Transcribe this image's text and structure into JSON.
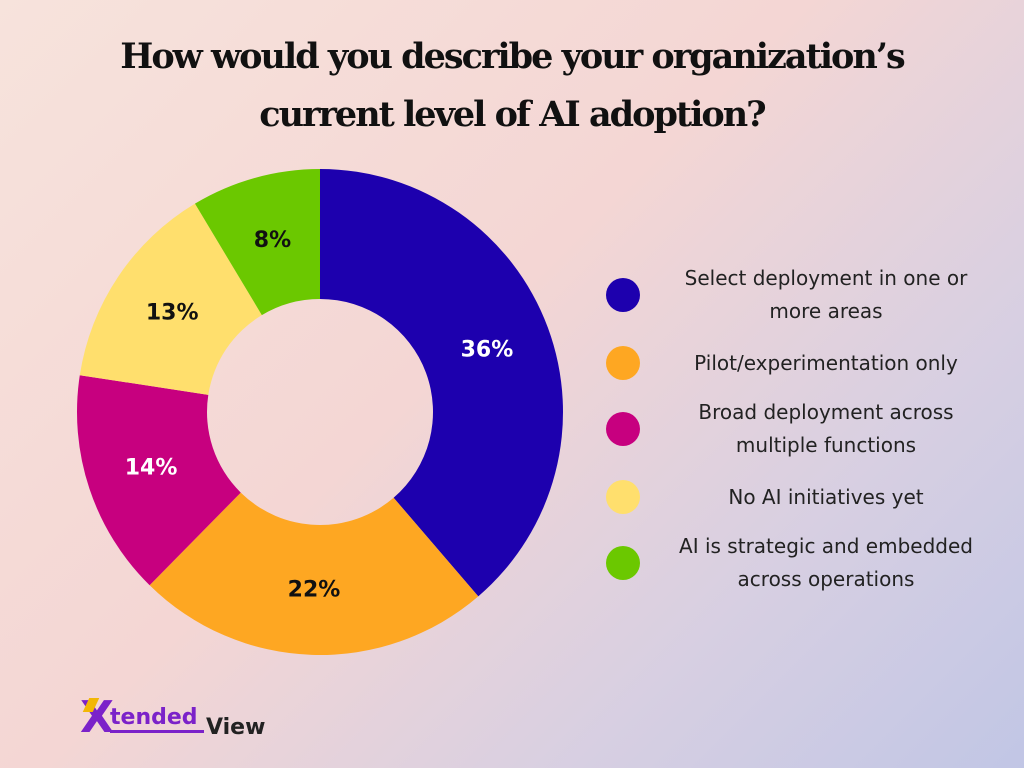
{
  "chart_data": {
    "type": "pie",
    "title_lines": [
      "How would you describe your organization’s",
      "current level of AI adoption?"
    ],
    "donut": true,
    "slices": [
      {
        "label": "Select deployment in one or more areas",
        "value": 36,
        "display": "36%",
        "color": "#1d00ae",
        "label_color": "#ffffff"
      },
      {
        "label": "Pilot/experimentation only",
        "value": 22,
        "display": "22%",
        "color": "#fea722",
        "label_color": "#111111"
      },
      {
        "label": "Broad deployment across multiple functions",
        "value": 14,
        "display": "14%",
        "color": "#c7007f",
        "label_color": "#ffffff"
      },
      {
        "label": "No AI initiatives yet",
        "value": 13,
        "display": "13%",
        "color": "#ffdf6d",
        "label_color": "#111111"
      },
      {
        "label": "AI is strategic and embedded across operations",
        "value": 8,
        "display": "8%",
        "color": "#6bc800",
        "label_color": "#111111"
      }
    ],
    "legend": {
      "placement": "right",
      "items": [
        {
          "lines": [
            "Select deployment in one or",
            "more areas"
          ],
          "color": "#1d00ae"
        },
        {
          "lines": [
            "Pilot/experimentation only"
          ],
          "color": "#fea722"
        },
        {
          "lines": [
            "Broad deployment across",
            "multiple functions"
          ],
          "color": "#c7007f"
        },
        {
          "lines": [
            "No AI initiatives yet"
          ],
          "color": "#ffdf6d"
        },
        {
          "lines": [
            "AI is strategic and embedded",
            "across operations"
          ],
          "color": "#6bc800"
        }
      ]
    }
  },
  "logo": {
    "x": "X",
    "part1": "tended",
    "part2": "View"
  }
}
